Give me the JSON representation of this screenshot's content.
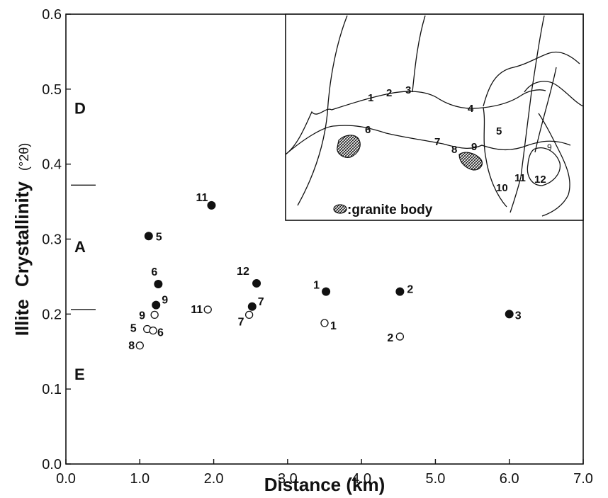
{
  "chart_data": {
    "type": "scatter",
    "xlabel": "Distance (km)",
    "ylabel_parts": [
      "Illite",
      "Crystallinity",
      "(°2θ)"
    ],
    "xlim": [
      0,
      7
    ],
    "ylim": [
      0,
      0.6
    ],
    "x_ticks": [
      "0.0",
      "1.0",
      "2.0",
      "3.0",
      "4.0",
      "5.0",
      "6.0",
      "7.0"
    ],
    "y_ticks": [
      "0.0",
      "0.1",
      "0.2",
      "0.3",
      "0.4",
      "0.5",
      "0.6"
    ],
    "zones": [
      {
        "label": "D",
        "y": 0.475
      },
      {
        "label": "A",
        "y": 0.29
      },
      {
        "label": "E",
        "y": 0.12
      }
    ],
    "zone_boundaries": [
      0.372,
      0.206
    ],
    "series": [
      {
        "marker": "filled",
        "points": [
          {
            "label": "5",
            "x": 1.12,
            "y": 0.304
          },
          {
            "label": "11",
            "x": 1.97,
            "y": 0.345
          },
          {
            "label": "6",
            "x": 1.25,
            "y": 0.24
          },
          {
            "label": "9",
            "x": 1.22,
            "y": 0.212
          },
          {
            "label": "12",
            "x": 2.58,
            "y": 0.241
          },
          {
            "label": "7",
            "x": 2.52,
            "y": 0.21
          },
          {
            "label": "1",
            "x": 3.52,
            "y": 0.23
          },
          {
            "label": "2",
            "x": 4.52,
            "y": 0.23
          },
          {
            "label": "3",
            "x": 6.0,
            "y": 0.2
          }
        ]
      },
      {
        "marker": "open",
        "points": [
          {
            "label": "11",
            "x": 1.92,
            "y": 0.206
          },
          {
            "label": "9",
            "x": 1.2,
            "y": 0.199
          },
          {
            "label": "7",
            "x": 2.48,
            "y": 0.199
          },
          {
            "label": "5",
            "x": 1.1,
            "y": 0.18
          },
          {
            "label": "6",
            "x": 1.18,
            "y": 0.178
          },
          {
            "label": "8",
            "x": 1.0,
            "y": 0.158
          },
          {
            "label": "1",
            "x": 3.5,
            "y": 0.188
          },
          {
            "label": "2",
            "x": 4.52,
            "y": 0.17
          }
        ]
      }
    ],
    "inset": {
      "numbers": [
        "1",
        "2",
        "3",
        "4",
        "5",
        "6",
        "7",
        "8",
        "9",
        "9",
        "10",
        "11",
        "12"
      ],
      "legend": ":granite body"
    }
  }
}
